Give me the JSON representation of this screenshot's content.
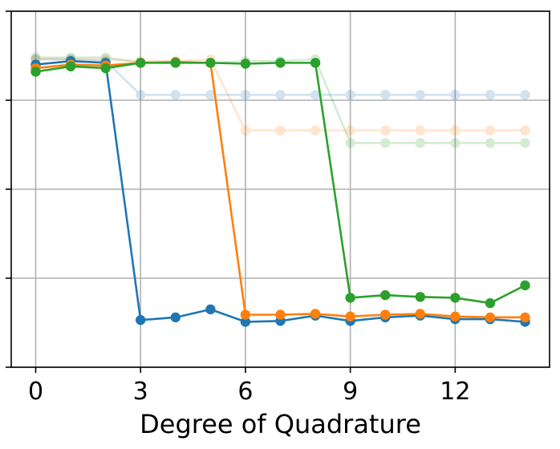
{
  "chart_data": {
    "type": "line",
    "xlabel": "Degree of Quadrature",
    "ylabel": "",
    "xlim": [
      -0.7,
      14.7
    ],
    "ylim": [
      0,
      20
    ],
    "xticks": [
      0,
      3,
      6,
      9,
      12
    ],
    "yticks": [
      0,
      5,
      10,
      15,
      20
    ],
    "grid": true,
    "series": [
      {
        "color": "#1f77b4",
        "alpha": 0.2,
        "x": [
          0,
          1,
          2,
          3,
          4,
          5,
          6,
          7,
          8,
          9,
          10,
          11,
          12,
          13,
          14
        ],
        "y": [
          17.3,
          17.3,
          17.2,
          15.3,
          15.3,
          15.3,
          15.3,
          15.3,
          15.3,
          15.3,
          15.3,
          15.3,
          15.3,
          15.3,
          15.3
        ]
      },
      {
        "color": "#ff7f0e",
        "alpha": 0.2,
        "x": [
          0,
          1,
          2,
          3,
          4,
          5,
          6,
          7,
          8,
          9,
          10,
          11,
          12,
          13,
          14
        ],
        "y": [
          17.3,
          17.3,
          17.3,
          17.2,
          17.2,
          17.3,
          13.3,
          13.3,
          13.3,
          13.3,
          13.3,
          13.3,
          13.3,
          13.3,
          13.3
        ]
      },
      {
        "color": "#2ca02c",
        "alpha": 0.2,
        "x": [
          0,
          1,
          2,
          3,
          4,
          5,
          6,
          7,
          8,
          9,
          10,
          11,
          12,
          13,
          14
        ],
        "y": [
          17.4,
          17.4,
          17.4,
          17.1,
          17.1,
          17.1,
          17.2,
          17.2,
          17.3,
          12.6,
          12.6,
          12.6,
          12.6,
          12.6,
          12.6
        ]
      },
      {
        "color": "#1f77b4",
        "alpha": 1,
        "x": [
          0,
          1,
          2,
          3,
          4,
          5,
          6,
          7,
          8,
          9,
          10,
          11,
          12,
          13,
          14
        ],
        "y": [
          17.0,
          17.2,
          17.1,
          2.65,
          2.8,
          3.25,
          2.55,
          2.6,
          2.9,
          2.6,
          2.8,
          2.9,
          2.7,
          2.7,
          2.55
        ]
      },
      {
        "color": "#ff7f0e",
        "alpha": 1,
        "x": [
          0,
          1,
          2,
          3,
          4,
          5,
          6,
          7,
          8,
          9,
          10,
          11,
          12,
          13,
          14
        ],
        "y": [
          16.8,
          17.0,
          16.95,
          17.1,
          17.15,
          17.1,
          2.95,
          2.95,
          3.0,
          2.85,
          2.95,
          3.0,
          2.85,
          2.8,
          2.8
        ]
      },
      {
        "color": "#2ca02c",
        "alpha": 1,
        "x": [
          0,
          1,
          2,
          3,
          4,
          5,
          6,
          7,
          8,
          9,
          10,
          11,
          12,
          13,
          14
        ],
        "y": [
          16.6,
          16.9,
          16.8,
          17.1,
          17.1,
          17.1,
          17.05,
          17.1,
          17.1,
          3.9,
          4.05,
          3.95,
          3.9,
          3.6,
          4.6
        ]
      }
    ]
  }
}
